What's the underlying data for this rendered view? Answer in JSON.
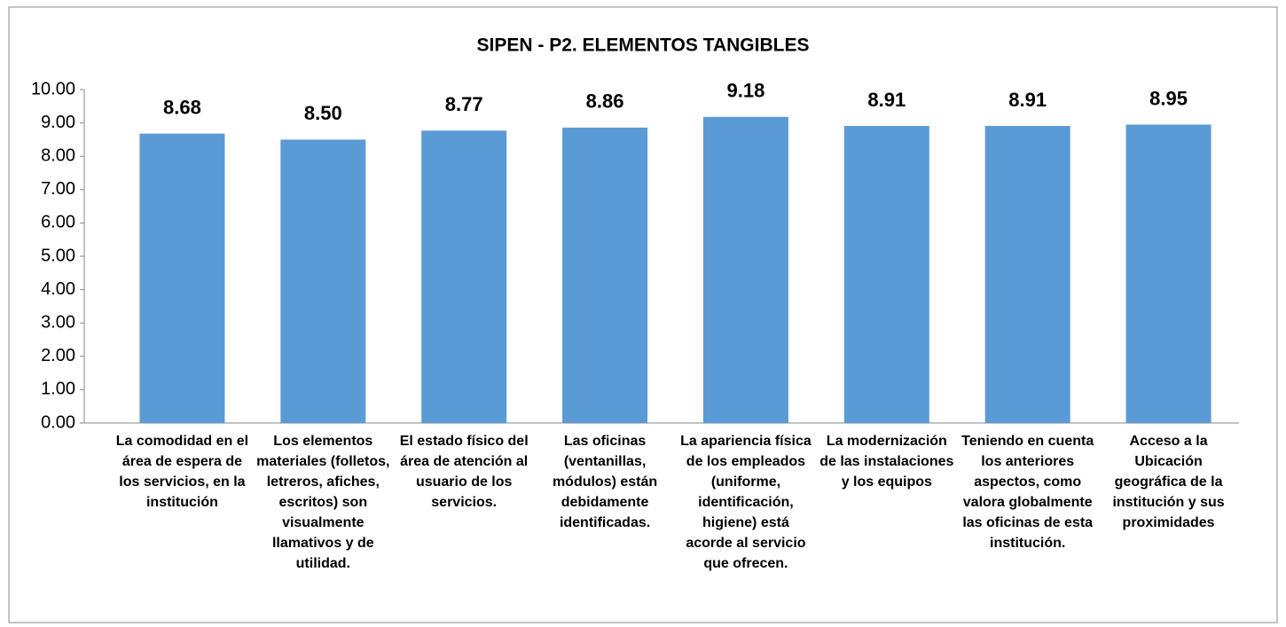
{
  "chart_data": {
    "type": "bar",
    "title": "SIPEN - P2. ELEMENTOS TANGIBLES",
    "categories": [
      "La comodidad en el área de espera de los servicios, en la institución",
      "Los elementos materiales (folletos, letreros, afiches, escritos) son visualmente llamativos y de utilidad.",
      "El estado físico del área de atención al usuario de los servicios.",
      "Las oficinas (ventanillas, módulos) están debidamente identificadas.",
      "La apariencia física de los empleados (uniforme, identificación, higiene) está acorde al servicio que ofrecen.",
      "La modernización de las instalaciones y los equipos",
      "Teniendo en cuenta los anteriores aspectos, como valora globalmente las oficinas de esta institución.",
      "Acceso a la Ubicación geográfica de la institución y sus proximidades"
    ],
    "values": [
      8.68,
      8.5,
      8.77,
      8.86,
      9.18,
      8.91,
      8.91,
      8.95
    ],
    "value_labels": [
      "8.68",
      "8.50",
      "8.77",
      "8.86",
      "9.18",
      "8.91",
      "8.91",
      "8.95"
    ],
    "color": "#5b9bd5",
    "ylim": [
      0,
      10
    ],
    "yticks": [
      {
        "value": 0,
        "label": "0.00"
      },
      {
        "value": 1,
        "label": "1.00"
      },
      {
        "value": 2,
        "label": "2.00"
      },
      {
        "value": 3,
        "label": "3.00"
      },
      {
        "value": 4,
        "label": "4.00"
      },
      {
        "value": 5,
        "label": "5.00"
      },
      {
        "value": 6,
        "label": "6.00"
      },
      {
        "value": 7,
        "label": "7.00"
      },
      {
        "value": 8,
        "label": "8.00"
      },
      {
        "value": 9,
        "label": "9.00"
      },
      {
        "value": 10,
        "label": "10.00"
      }
    ],
    "grid": false
  }
}
